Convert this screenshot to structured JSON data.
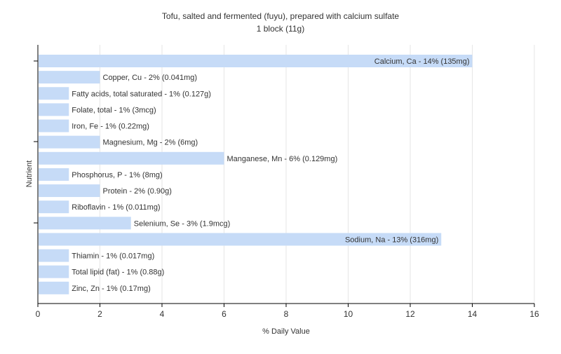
{
  "chart_data": {
    "type": "bar",
    "orientation": "horizontal",
    "title": "Tofu, salted and fermented (fuyu), prepared with calcium sulfate",
    "subtitle": "1 block (11g)",
    "xlabel": "% Daily Value",
    "ylabel": "Nutrient",
    "xlim": [
      0,
      16
    ],
    "xticks": [
      0,
      2,
      4,
      6,
      8,
      10,
      12,
      14,
      16
    ],
    "grid": true,
    "legend": "none",
    "categories": [
      "Calcium, Ca",
      "Copper, Cu",
      "Fatty acids, total saturated",
      "Folate, total",
      "Iron, Fe",
      "Magnesium, Mg",
      "Manganese, Mn",
      "Phosphorus, P",
      "Protein",
      "Riboflavin",
      "Selenium, Se",
      "Sodium, Na",
      "Thiamin",
      "Total lipid (fat)",
      "Zinc, Zn"
    ],
    "values": [
      14,
      2,
      1,
      1,
      1,
      2,
      6,
      1,
      2,
      1,
      3,
      13,
      1,
      1,
      1
    ],
    "labels": [
      "Calcium, Ca - 14% (135mg)",
      "Copper, Cu - 2% (0.041mg)",
      "Fatty acids, total saturated - 1% (0.127g)",
      "Folate, total - 1% (3mcg)",
      "Iron, Fe - 1% (0.22mg)",
      "Magnesium, Mg - 2% (6mg)",
      "Manganese, Mn - 6% (0.129mg)",
      "Phosphorus, P - 1% (8mg)",
      "Protein - 2% (0.90g)",
      "Riboflavin - 1% (0.011mg)",
      "Selenium, Se - 3% (1.9mcg)",
      "Sodium, Na - 13% (316mg)",
      "Thiamin - 1% (0.017mg)",
      "Total lipid (fat) - 1% (0.88g)",
      "Zinc, Zn - 1% (0.17mg)"
    ],
    "colors": {
      "bar": "#c6dbf7",
      "grid": "#e6e6e6",
      "axis": "#000000",
      "text": "#333333"
    }
  }
}
